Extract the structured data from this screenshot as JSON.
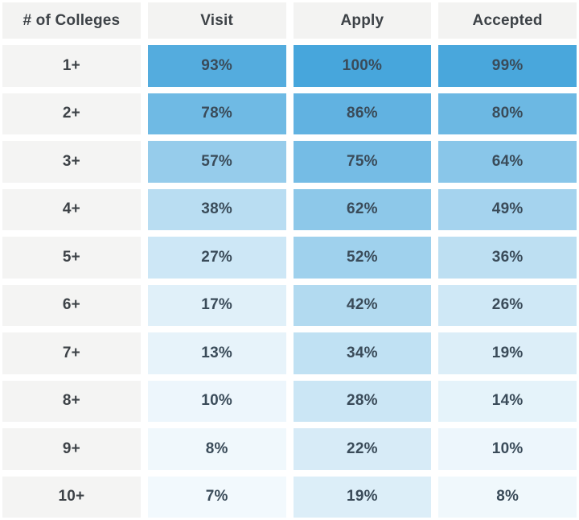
{
  "colors": {
    "background": "#ffffff",
    "header_bg": "#f3f3f2",
    "header_text": "#3d4247",
    "cell_text": "#3a4b59",
    "max_blue": "#47a6dc",
    "min_blue": "#ffffff"
  },
  "chart_data": {
    "type": "heatmap",
    "title": "",
    "row_header": "# of Colleges",
    "columns": [
      "Visit",
      "Apply",
      "Accepted"
    ],
    "rows": [
      "1+",
      "2+",
      "3+",
      "4+",
      "5+",
      "6+",
      "7+",
      "8+",
      "9+",
      "10+"
    ],
    "series": [
      {
        "name": "Visit",
        "values": [
          93,
          78,
          57,
          38,
          27,
          17,
          13,
          10,
          8,
          7
        ]
      },
      {
        "name": "Apply",
        "values": [
          100,
          86,
          75,
          62,
          52,
          42,
          34,
          28,
          22,
          19
        ]
      },
      {
        "name": "Accepted",
        "values": [
          99,
          80,
          64,
          49,
          36,
          26,
          19,
          14,
          10,
          8
        ]
      }
    ],
    "value_format": "percent",
    "value_suffix": "%",
    "color_scale": {
      "min_color": "#ffffff",
      "max_color": "#47a6dc",
      "domain": [
        0,
        100
      ]
    },
    "legend": "none",
    "grid": "off"
  }
}
